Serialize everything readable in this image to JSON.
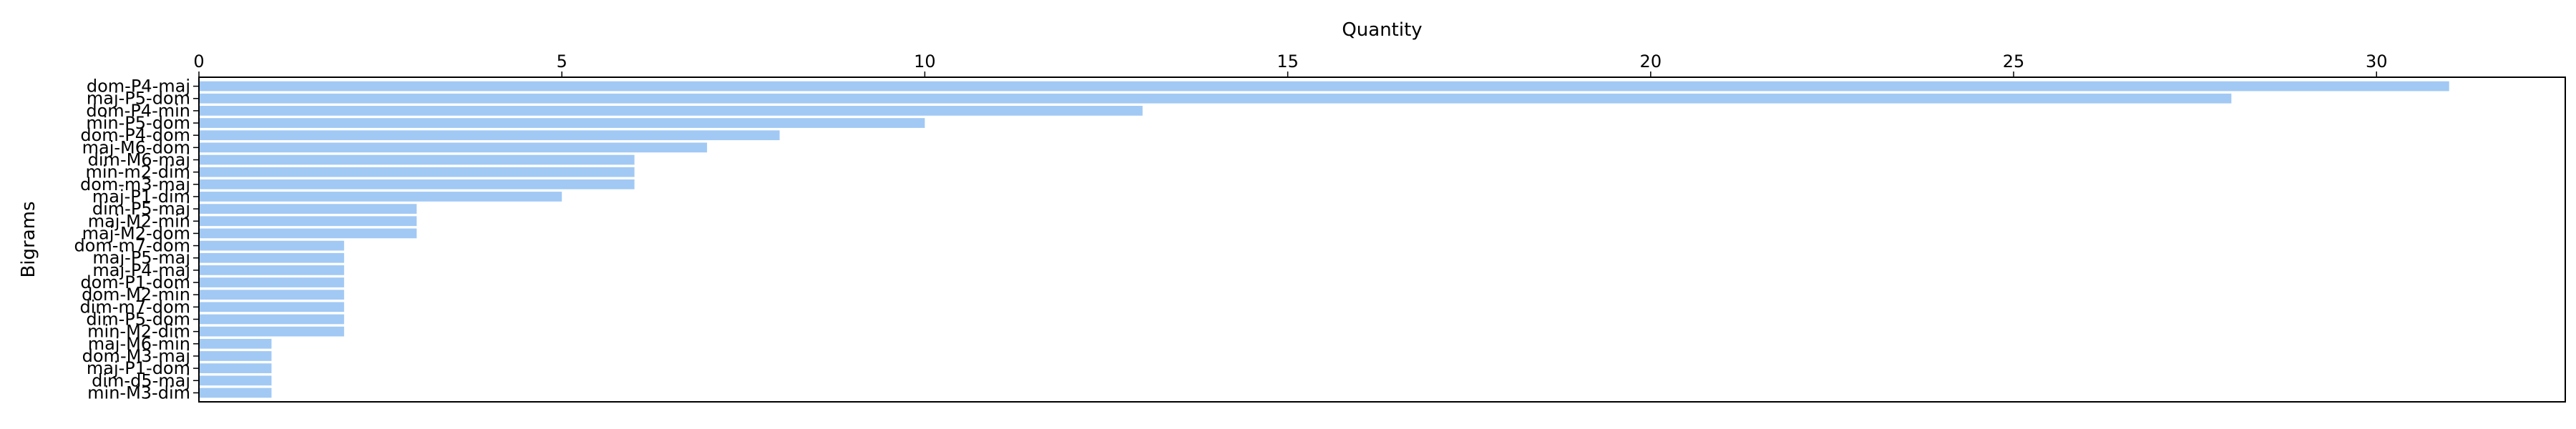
{
  "chart_data": {
    "type": "bar",
    "orientation": "horizontal",
    "xlabel": "Quantity",
    "ylabel": "Bigrams",
    "xlabel_position": "top",
    "xlim": [
      0,
      32.6
    ],
    "xticks": [
      0,
      5,
      10,
      15,
      20,
      25,
      30
    ],
    "grid": false,
    "bar_color": "#a1c9f4",
    "categories": [
      "dom-P4-maj",
      "maj-P5-dom",
      "dom-P4-min",
      "min-P5-dom",
      "dom-P4-dom",
      "maj-M6-dom",
      "dim-M6-maj",
      "min-m2-dim",
      "dom-m3-maj",
      "maj-P1-dim",
      "dim-P5-maj",
      "maj-M2-min",
      "maj-M2-dom",
      "dom-m7-dom",
      "maj-P5-maj",
      "maj-P4-maj",
      "dom-P1-dom",
      "dom-M2-min",
      "dim-m7-dom",
      "dim-P5-dom",
      "min-M2-dim",
      "maj-M6-min",
      "dom-M3-maj",
      "maj-P1-dom",
      "dim-d5-maj",
      "min-M3-dim"
    ],
    "values": [
      31,
      28,
      13,
      10,
      8,
      7,
      6,
      6,
      6,
      5,
      3,
      3,
      3,
      2,
      2,
      2,
      2,
      2,
      2,
      2,
      2,
      1,
      1,
      1,
      1,
      1
    ]
  }
}
